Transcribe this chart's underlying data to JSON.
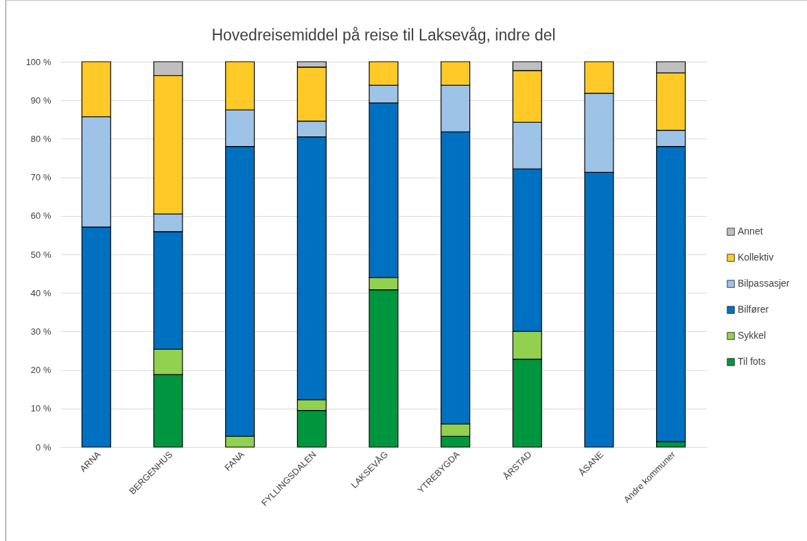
{
  "chart_data": {
    "type": "bar",
    "title": "Hovedreisemiddel på reise til Laksevåg, indre del",
    "categories": [
      "ARNA",
      "BERGENHUS",
      "FANA",
      "FYLLINGSDALEN",
      "LAKSEVÅG",
      "YTREBYGDA",
      "ÅRSTAD",
      "ÅSANE",
      "Andre kommuner"
    ],
    "series": [
      {
        "name": "Til fots",
        "color": "#00953f",
        "values": [
          0,
          18.8,
          0,
          9.5,
          40.8,
          2.8,
          22.8,
          0,
          1.4
        ]
      },
      {
        "name": "Sykkel",
        "color": "#92d050",
        "values": [
          0,
          6.6,
          2.8,
          2.8,
          3.2,
          3.2,
          7.2,
          0,
          0
        ]
      },
      {
        "name": "Bilfører",
        "color": "#0070c0",
        "values": [
          57.1,
          30.5,
          75.2,
          68.2,
          45.3,
          75.8,
          42.2,
          71.3,
          76.6
        ]
      },
      {
        "name": "Bilpassasjer",
        "color": "#9dc3e6",
        "values": [
          28.6,
          4.6,
          9.5,
          4.1,
          4.6,
          12.1,
          12.1,
          20.5,
          4.2
        ]
      },
      {
        "name": "Kollektiv",
        "color": "#ffca28",
        "values": [
          14.3,
          35.9,
          12.5,
          14.0,
          6.1,
          6.1,
          13.4,
          8.2,
          14.9
        ]
      },
      {
        "name": "Annet",
        "color": "#bfbfbf",
        "values": [
          0,
          3.6,
          0,
          1.4,
          0,
          0,
          2.3,
          0,
          2.9
        ]
      }
    ],
    "stacked": true,
    "ylim": [
      0,
      100
    ],
    "yticks": [
      {
        "value": 0,
        "label": "0 %"
      },
      {
        "value": 10,
        "label": "10 %"
      },
      {
        "value": 20,
        "label": "20 %"
      },
      {
        "value": 30,
        "label": "30 %"
      },
      {
        "value": 40,
        "label": "40 %"
      },
      {
        "value": 50,
        "label": "50 %"
      },
      {
        "value": 60,
        "label": "60 %"
      },
      {
        "value": 70,
        "label": "70 %"
      },
      {
        "value": 80,
        "label": "80 %"
      },
      {
        "value": 90,
        "label": "90 %"
      },
      {
        "value": 100,
        "label": "100 %"
      }
    ],
    "grid": "y",
    "legend": "right"
  }
}
